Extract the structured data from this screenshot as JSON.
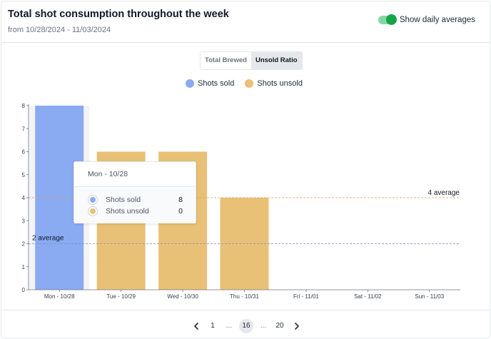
{
  "header": {
    "title": "Total shot consumption throughout the week",
    "subtitle": "from 10/28/2024 - 11/03/2024",
    "toggle_label": "Show daily averages",
    "toggle_on": true
  },
  "tabs": [
    {
      "label": "Total Brewed",
      "active": false
    },
    {
      "label": "Unsold Ratio",
      "active": true
    }
  ],
  "colors": {
    "sold": "#8aabf2",
    "unsold": "#e9c176",
    "avg_sold_line": "#7b84d6",
    "avg_unsold_line": "#e29a5e",
    "toggle_on": "#16a34a"
  },
  "chart_data": {
    "type": "bar",
    "categories": [
      "Mon - 10/28",
      "Tue - 10/29",
      "Wed - 10/30",
      "Thu - 10/31",
      "Fri - 11/01",
      "Sat - 11/02",
      "Sun - 11/03"
    ],
    "series": [
      {
        "name": "Shots sold",
        "values": [
          8,
          0,
          0,
          0,
          0,
          0,
          0
        ]
      },
      {
        "name": "Shots unsold",
        "values": [
          0,
          6,
          6,
          4,
          0,
          0,
          0
        ]
      }
    ],
    "ylim": [
      0,
      8
    ],
    "yticks": [
      0,
      1,
      2,
      3,
      4,
      5,
      6,
      7,
      8
    ],
    "averages": [
      {
        "series": "Shots sold",
        "value": 2,
        "label": "2 average"
      },
      {
        "series": "Shots unsold",
        "value": 4,
        "label": "4 average"
      }
    ],
    "legend_position": "top-center",
    "highlighted_category": "Mon - 10/28"
  },
  "tooltip": {
    "title": "Mon - 10/28",
    "rows": [
      {
        "name": "Shots sold",
        "value": "8"
      },
      {
        "name": "Shots unsold",
        "value": "0"
      }
    ]
  },
  "pagination": {
    "prev_icon": "chevron-left-icon",
    "next_icon": "chevron-right-icon",
    "pages": [
      "1",
      "...",
      "16",
      "...",
      "20"
    ],
    "current": "16"
  }
}
